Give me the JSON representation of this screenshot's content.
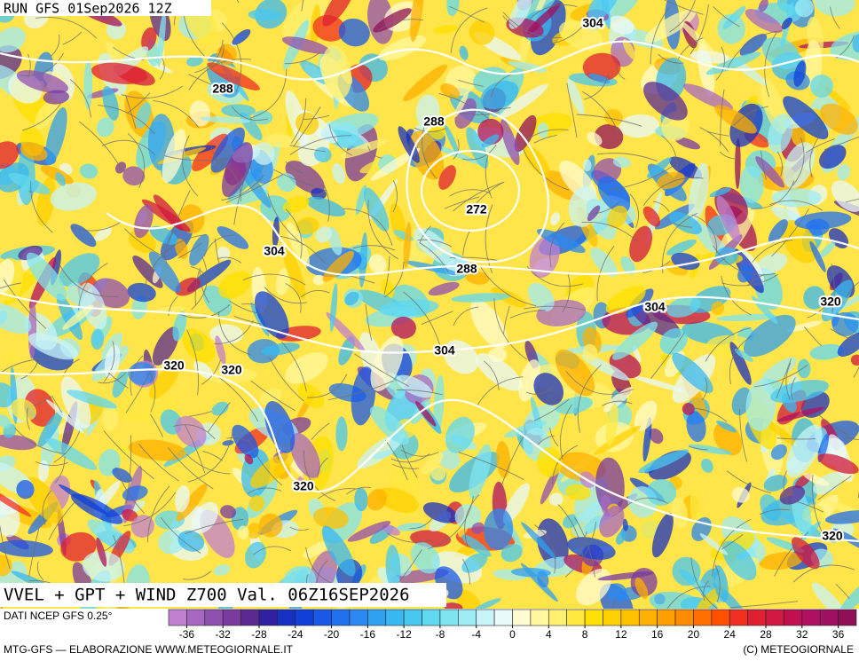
{
  "header": {
    "run": "RUN GFS 01Sep2026 12Z"
  },
  "map": {
    "title": "VVEL + GPT + WIND Z700 Val. 06Z16SEP2026",
    "contour_labels": [
      304,
      288,
      288,
      272,
      304,
      288,
      304,
      320,
      304,
      320,
      320,
      320,
      320
    ]
  },
  "legend": {
    "source": "DATI NCEP GFS 0.25°",
    "range": [
      -38,
      38
    ],
    "ticks": [
      -36,
      -32,
      -28,
      -24,
      -20,
      -16,
      -12,
      -8,
      -4,
      0,
      4,
      8,
      12,
      16,
      20,
      24,
      28,
      32,
      36
    ],
    "colors": [
      "#c080d0",
      "#a868c0",
      "#9050b0",
      "#7a3aa0",
      "#5a2a90",
      "#3020a0",
      "#1830c0",
      "#1040d8",
      "#1a58e8",
      "#2070f0",
      "#2a88f0",
      "#30a0f0",
      "#38b8f0",
      "#48c8f0",
      "#60d8f0",
      "#80e4f0",
      "#a0ecf4",
      "#c8f4f8",
      "#e8fafa",
      "#fffcd0",
      "#fff8a0",
      "#fff070",
      "#ffe840",
      "#ffe000",
      "#ffd000",
      "#ffc000",
      "#ffb000",
      "#ffa000",
      "#ff8c00",
      "#ff7000",
      "#ff5000",
      "#f03020",
      "#e02030",
      "#d01840",
      "#c01050",
      "#b01060",
      "#a01060",
      "#901058"
    ]
  },
  "footer": {
    "left": "MTG-GFS — ELABORAZIONE WWW.METEOGIORNALE.IT",
    "right": "(C) METEOGIORNALE"
  }
}
